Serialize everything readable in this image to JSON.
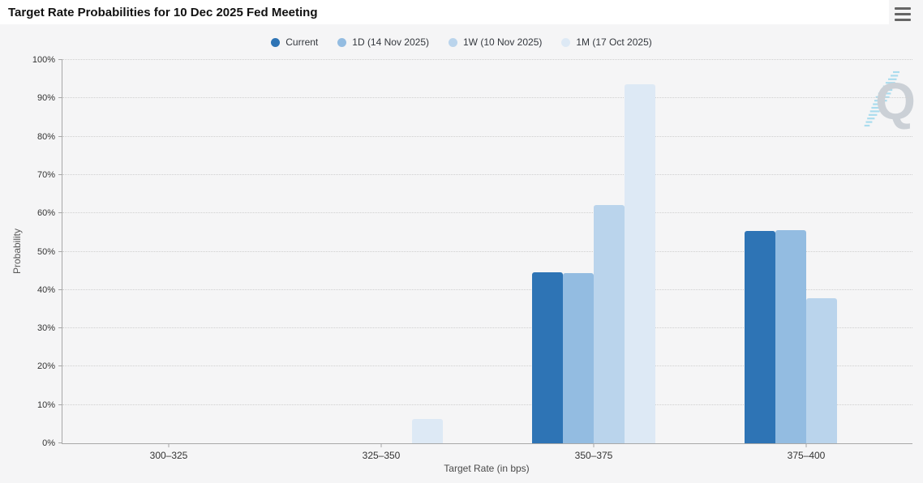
{
  "header": {
    "title": "Target Rate Probabilities for 10 Dec 2025 Fed Meeting"
  },
  "menu": {
    "icon": "hamburger-menu"
  },
  "watermark": {
    "icon": "quikstrike-q-logo",
    "letter": "Q",
    "letter_color": "#cbd0d6",
    "stripe_color": "#aadcee"
  },
  "colors": {
    "panel_bg": "#f5f5f6",
    "titlebar_bg": "#ffffff",
    "axis": "#a8a8a8",
    "grid": "#cfcfcf",
    "label_text": "#333333"
  },
  "chart_data": {
    "type": "bar",
    "title": "Target Rate Probabilities for 10 Dec 2025 Fed Meeting",
    "categories": [
      "300–325",
      "325–350",
      "350–375",
      "375–400"
    ],
    "series": [
      {
        "name": "Current",
        "color": "#2e74b5",
        "values": [
          0,
          0,
          44.7,
          55.3
        ]
      },
      {
        "name": "1D (14 Nov 2025)",
        "color": "#93bce1",
        "values": [
          0,
          0,
          44.3,
          55.7
        ]
      },
      {
        "name": "1W (10 Nov 2025)",
        "color": "#bad4ec",
        "values": [
          0,
          0,
          62.2,
          37.8
        ]
      },
      {
        "name": "1M (17 Oct 2025)",
        "color": "#dde9f5",
        "values": [
          0,
          6.3,
          93.7,
          0
        ]
      }
    ],
    "xlabel": "Target Rate (in bps)",
    "ylabel": "Probability",
    "ylim": [
      0,
      100
    ],
    "ytick_step": 10,
    "yticks": [
      "0%",
      "10%",
      "20%",
      "30%",
      "40%",
      "50%",
      "60%",
      "70%",
      "80%",
      "90%",
      "100%"
    ],
    "grid": "horizontal-dotted",
    "legend_position": "top-center"
  }
}
